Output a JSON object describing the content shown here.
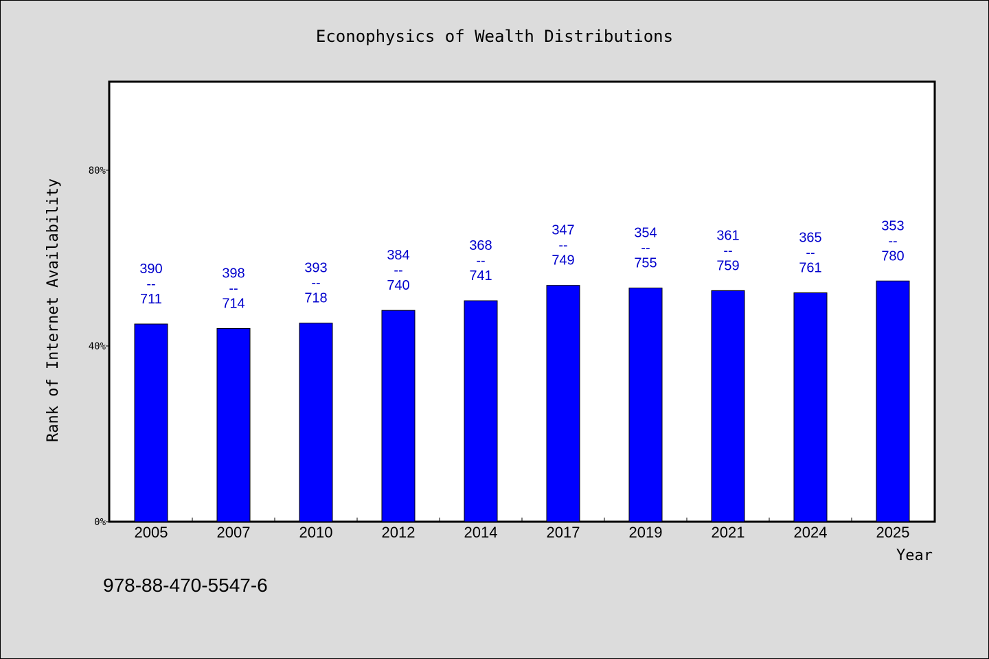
{
  "chart_data": {
    "type": "bar",
    "title": "Econophysics of Wealth Distributions",
    "xlabel": "Year",
    "ylabel": "Rank of Internet Availability",
    "categories": [
      "2005",
      "2007",
      "2010",
      "2012",
      "2014",
      "2017",
      "2019",
      "2021",
      "2024",
      "2025"
    ],
    "values": [
      45.0,
      44.0,
      45.2,
      48.1,
      50.3,
      53.8,
      53.2,
      52.6,
      52.1,
      54.8
    ],
    "data_labels": [
      [
        "390",
        "--",
        "711"
      ],
      [
        "398",
        "--",
        "714"
      ],
      [
        "393",
        "--",
        "718"
      ],
      [
        "384",
        "--",
        "740"
      ],
      [
        "368",
        "--",
        "741"
      ],
      [
        "347",
        "--",
        "749"
      ],
      [
        "354",
        "--",
        "755"
      ],
      [
        "361",
        "--",
        "759"
      ],
      [
        "365",
        "--",
        "761"
      ],
      [
        "353",
        "--",
        "780"
      ]
    ],
    "y_ticks": [
      {
        "value": 0,
        "label": "0%"
      },
      {
        "value": 40,
        "label": "40%"
      },
      {
        "value": 80,
        "label": "80%"
      }
    ],
    "ylim": [
      0,
      100
    ],
    "grid": false,
    "bar_color": "#0000ff",
    "label_color": "#0000cc"
  },
  "footnote": "978-88-470-5547-6"
}
